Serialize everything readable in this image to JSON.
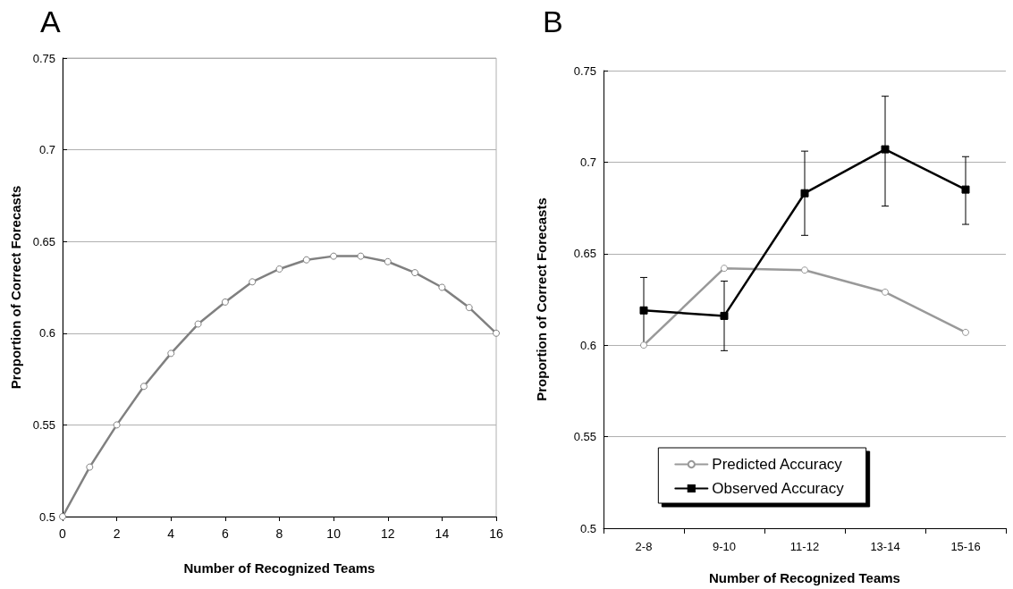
{
  "chart_data": [
    {
      "type": "line",
      "title": "A",
      "xlabel": "Number of Recognized Teams",
      "ylabel": "Proportion of Correct Forecasts",
      "x": [
        0,
        1,
        2,
        3,
        4,
        5,
        6,
        7,
        8,
        9,
        10,
        11,
        12,
        13,
        14,
        15,
        16
      ],
      "series": [
        {
          "color": "#808080",
          "values": [
            0.5,
            0.527,
            0.55,
            0.571,
            0.589,
            0.605,
            0.617,
            0.628,
            0.635,
            0.64,
            0.642,
            0.642,
            0.639,
            0.633,
            0.625,
            0.614,
            0.6
          ]
        }
      ],
      "xlim": [
        0,
        16
      ],
      "xticks": [
        0,
        2,
        4,
        6,
        8,
        10,
        12,
        14,
        16
      ],
      "ylim": [
        0.5,
        0.75
      ],
      "yticks": [
        0.5,
        0.55,
        0.6,
        0.65,
        0.7,
        0.75
      ],
      "grid": "y",
      "marker": "circle",
      "legend": false
    },
    {
      "type": "line",
      "title": "B",
      "xlabel": "Number of Recognized Teams",
      "ylabel": "Proportion of Correct Forecasts",
      "categories": [
        "2-8",
        "9-10",
        "11-12",
        "13-14",
        "15-16"
      ],
      "series": [
        {
          "name": "Predicted Accuracy",
          "color": "#999999",
          "marker": "circle",
          "values": [
            0.6,
            0.642,
            0.641,
            0.629,
            0.607
          ]
        },
        {
          "name": "Observed Accuracy",
          "color": "#000000",
          "marker": "square",
          "values": [
            0.619,
            0.616,
            0.683,
            0.707,
            0.685
          ],
          "errors": [
            [
              0.6,
              0.637
            ],
            [
              0.597,
              0.635
            ],
            [
              0.66,
              0.706
            ],
            [
              0.676,
              0.736
            ],
            [
              0.666,
              0.703
            ]
          ]
        }
      ],
      "ylim": [
        0.5,
        0.75
      ],
      "yticks": [
        0.5,
        0.55,
        0.6,
        0.65,
        0.7,
        0.75
      ],
      "grid": "y",
      "legend": "bottom"
    }
  ]
}
